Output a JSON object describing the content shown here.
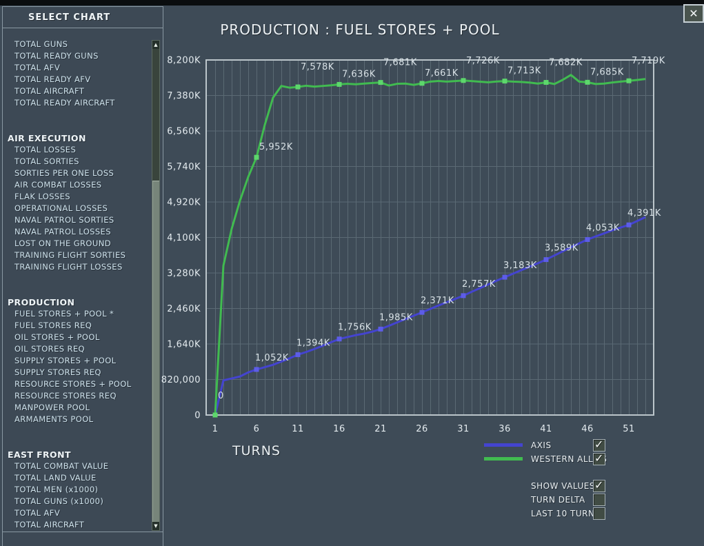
{
  "ui": {
    "close_glyph": "✕",
    "check_glyph": "✓",
    "scroll_up_glyph": "▲",
    "scroll_down_glyph": "▼"
  },
  "colors": {
    "background": "#3e4b57",
    "grid": "#5b6a74",
    "plot_border": "#bcc6cb",
    "tick_text": "#e4ebef",
    "value_label_text": "#d8e1e6"
  },
  "sidebar": {
    "title": "SELECT CHART",
    "selected_item": "FUEL STORES + POOL *",
    "sections": [
      {
        "header": "",
        "items": [
          "TOTAL GUNS",
          "TOTAL READY GUNS",
          "TOTAL AFV",
          "TOTAL READY AFV",
          "TOTAL AIRCRAFT",
          "TOTAL READY AIRCRAFT"
        ]
      },
      {
        "header": "AIR EXECUTION",
        "items": [
          "TOTAL LOSSES",
          "TOTAL SORTIES",
          "SORTIES PER ONE LOSS",
          "AIR COMBAT LOSSES",
          "FLAK LOSSES",
          "OPERATIONAL LOSSES",
          "NAVAL PATROL SORTIES",
          "NAVAL PATROL LOSSES",
          "LOST ON THE GROUND",
          "TRAINING FLIGHT SORTIES",
          "TRAINING FLIGHT LOSSES"
        ]
      },
      {
        "header": "PRODUCTION",
        "items": [
          "FUEL STORES + POOL *",
          "FUEL STORES REQ",
          "OIL STORES + POOL",
          "OIL STORES REQ",
          "SUPPLY STORES + POOL",
          "SUPPLY STORES REQ",
          "RESOURCE STORES + POOL",
          "RESOURCE STORES REQ",
          "MANPOWER POOL",
          "ARMAMENTS POOL"
        ]
      },
      {
        "header": "EAST FRONT",
        "items": [
          "TOTAL COMBAT VALUE",
          "TOTAL LAND VALUE",
          "TOTAL MEN (x1000)",
          "TOTAL GUNS (x1000)",
          "TOTAL AFV",
          "TOTAL AIRCRAFT"
        ]
      }
    ]
  },
  "chart_data": {
    "type": "line",
    "title": "PRODUCTION : FUEL STORES + POOL",
    "xlabel": "TURNS",
    "value_unit": "thousands (K)",
    "grid": true,
    "legend_position": "bottom-right",
    "turns_start": 1,
    "x_ticks": [
      1,
      6,
      11,
      16,
      21,
      26,
      31,
      36,
      41,
      46,
      51
    ],
    "y_tick_labels": [
      "8,200K",
      "7,380K",
      "6,560K",
      "5,740K",
      "4,920K",
      "4,100K",
      "3,280K",
      "2,460K",
      "1,640K",
      "820,000",
      "0"
    ],
    "ylim_k": [
      0,
      8200
    ],
    "series": [
      {
        "name": "AXIS",
        "color": "#4444d0",
        "marker_color": "#5d5de8",
        "values_k": [
          0,
          800,
          845,
          890,
          985,
          1052,
          1105,
          1160,
          1235,
          1310,
          1394,
          1455,
          1525,
          1600,
          1680,
          1756,
          1800,
          1845,
          1880,
          1925,
          1985,
          2060,
          2140,
          2215,
          2295,
          2371,
          2450,
          2530,
          2605,
          2680,
          2757,
          2845,
          2930,
          3015,
          3100,
          3183,
          3265,
          3345,
          3425,
          3505,
          3589,
          3685,
          3780,
          3875,
          3965,
          4053,
          4125,
          4195,
          4265,
          4330,
          4391,
          4480,
          4570
        ],
        "labeled_points": [
          {
            "turn": 6,
            "label": "1,052K"
          },
          {
            "turn": 11,
            "label": "1,394K"
          },
          {
            "turn": 16,
            "label": "1,756K"
          },
          {
            "turn": 21,
            "label": "1,985K"
          },
          {
            "turn": 26,
            "label": "2,371K"
          },
          {
            "turn": 31,
            "label": "2,757K"
          },
          {
            "turn": 36,
            "label": "3,183K"
          },
          {
            "turn": 41,
            "label": "3,589K"
          },
          {
            "turn": 46,
            "label": "4,053K"
          },
          {
            "turn": 51,
            "label": "4,391K"
          }
        ]
      },
      {
        "name": "WESTERN ALLIES",
        "color": "#41bb50",
        "marker_color": "#5dd76c",
        "values_k": [
          0,
          3450,
          4300,
          4950,
          5500,
          5952,
          6700,
          7330,
          7600,
          7560,
          7578,
          7605,
          7585,
          7600,
          7615,
          7636,
          7650,
          7638,
          7655,
          7668,
          7681,
          7610,
          7650,
          7655,
          7625,
          7661,
          7700,
          7715,
          7700,
          7712,
          7726,
          7712,
          7698,
          7685,
          7702,
          7713,
          7700,
          7692,
          7678,
          7655,
          7682,
          7645,
          7740,
          7855,
          7700,
          7685,
          7645,
          7655,
          7680,
          7700,
          7719,
          7738,
          7760
        ],
        "labeled_points": [
          {
            "turn": 1,
            "label": "0"
          },
          {
            "turn": 6,
            "label": "5,952K"
          },
          {
            "turn": 11,
            "label": "7,578K"
          },
          {
            "turn": 16,
            "label": "7,636K"
          },
          {
            "turn": 21,
            "label": "7,681K"
          },
          {
            "turn": 26,
            "label": "7,661K"
          },
          {
            "turn": 31,
            "label": "7,726K"
          },
          {
            "turn": 36,
            "label": "7,713K"
          },
          {
            "turn": 41,
            "label": "7,682K"
          },
          {
            "turn": 46,
            "label": "7,685K"
          },
          {
            "turn": 51,
            "label": "7,719K"
          }
        ]
      }
    ]
  },
  "legend": [
    {
      "label": "AXIS",
      "color": "#4444d0",
      "checked": true
    },
    {
      "label": "WESTERN ALLIES",
      "color": "#41bb50",
      "checked": true
    }
  ],
  "options": [
    {
      "label": "SHOW VALUES",
      "checked": true
    },
    {
      "label": "TURN DELTA",
      "checked": false
    },
    {
      "label": "LAST 10 TURNS",
      "checked": false
    }
  ]
}
